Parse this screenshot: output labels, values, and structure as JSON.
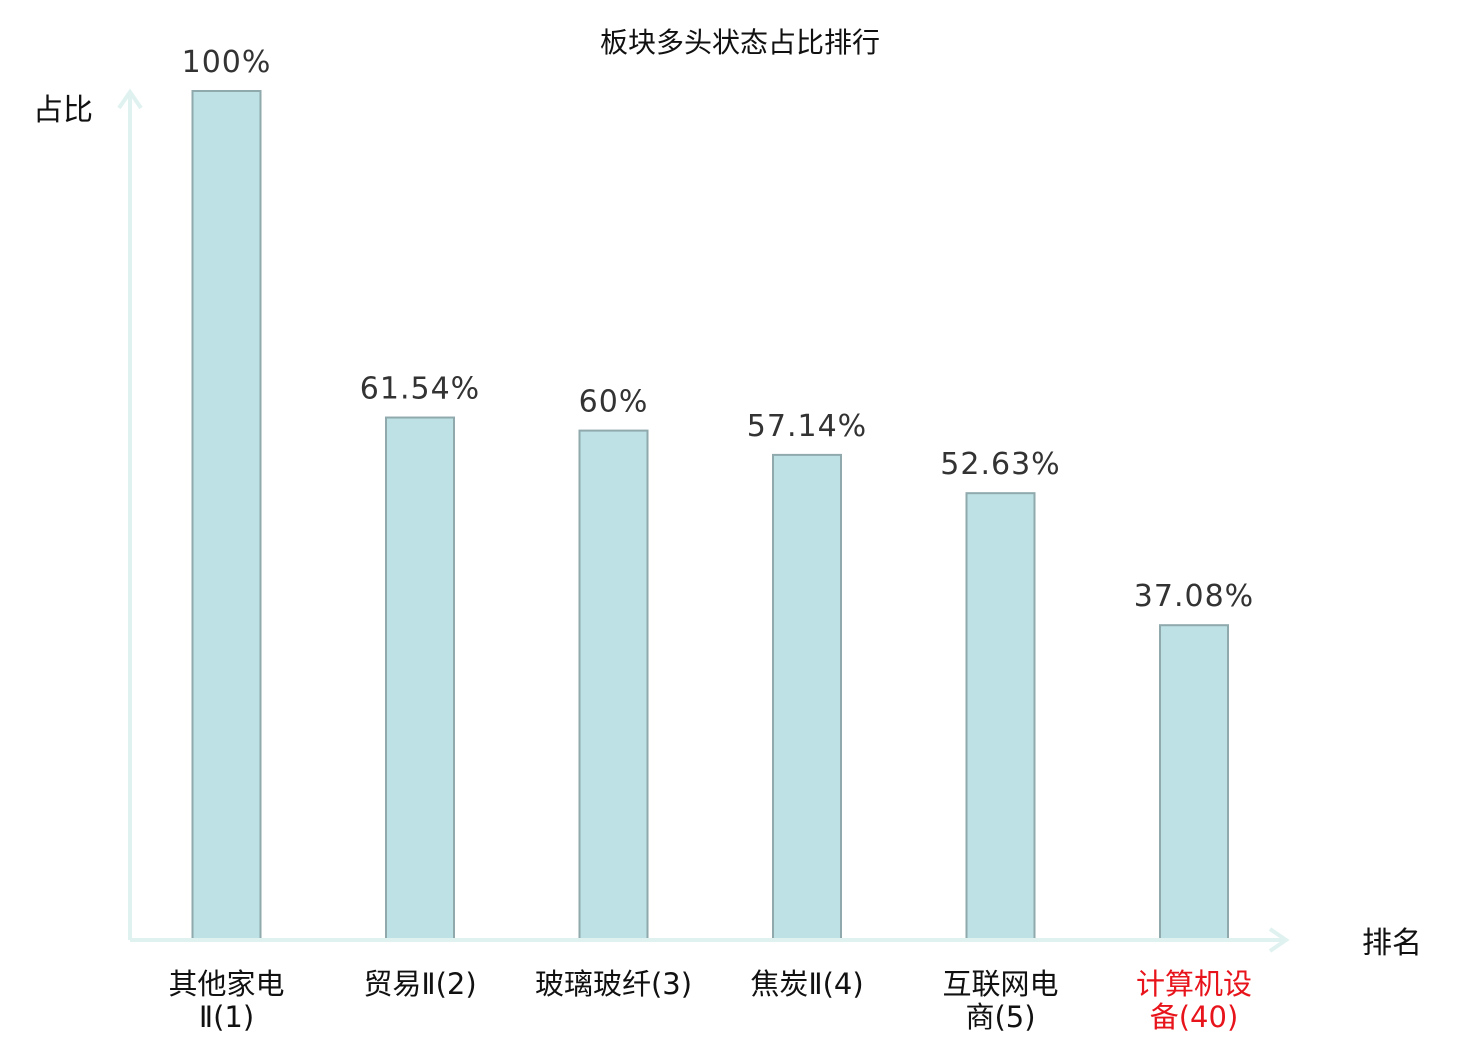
{
  "chart_data": {
    "type": "bar",
    "title": "板块多头状态占比排行",
    "ylabel": "占比",
    "xlabel": "排名",
    "ylim": [
      0,
      100
    ],
    "grid": false,
    "categories": [
      [
        "其他家电",
        "Ⅱ(1)"
      ],
      [
        "贸易Ⅱ(2)"
      ],
      [
        "玻璃玻纤(3)"
      ],
      [
        "焦炭Ⅱ(4)"
      ],
      [
        "互联网电",
        "商(5)"
      ],
      [
        "计算机设",
        "备(40)"
      ]
    ],
    "values": [
      100,
      61.54,
      60,
      57.14,
      52.63,
      37.08
    ],
    "value_labels": [
      "100%",
      "61.54%",
      "60%",
      "57.14%",
      "52.63%",
      "37.08%"
    ],
    "highlight_index": 5,
    "colors": {
      "bar_fill": "#bde1e4",
      "bar_stroke": "#8fa9ad",
      "axis": "#dff2ef",
      "highlight_text": "#e8141b"
    }
  }
}
